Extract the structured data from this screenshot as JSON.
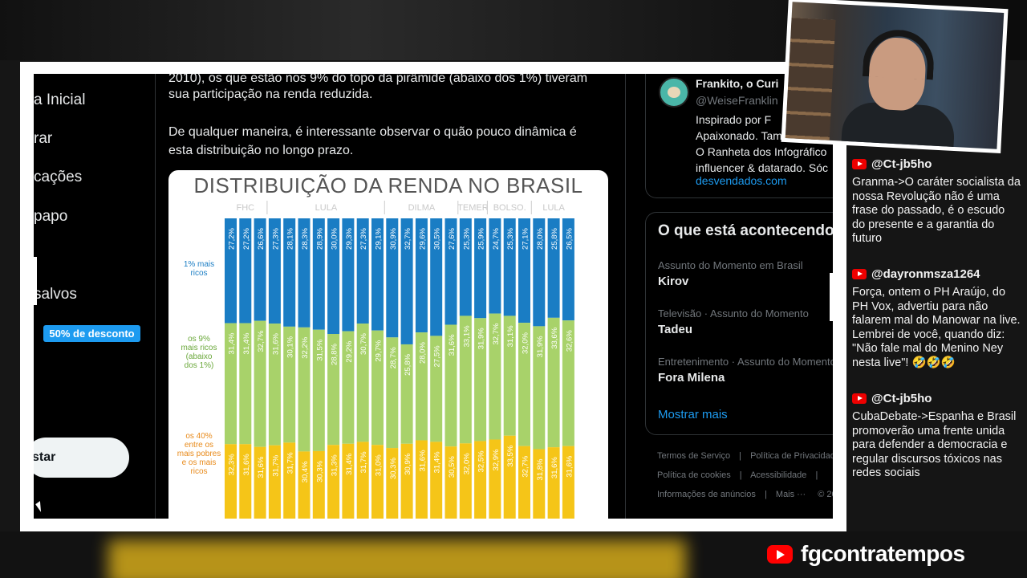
{
  "sidebar": {
    "items": [
      {
        "label": "a Inicial"
      },
      {
        "label": "rar"
      },
      {
        "label": "cações"
      },
      {
        "label": "papo"
      },
      {
        "label": "salvos"
      }
    ],
    "discount_badge": "50% de desconto",
    "post_button": "star"
  },
  "post": {
    "line1": "2010), os que estão nos 9% do topo da pirâmide (abaixo dos 1%) tiveram",
    "line2": "sua participação na renda reduzida.",
    "line3": "De qualquer maneira, é interessante observar o quão pouco dinâmica é",
    "line4": "esta distribuição no longo prazo."
  },
  "profile": {
    "name": "Frankito, o Curi",
    "handle": "@WeiseFranklin",
    "bio": [
      "Inspirado por F",
      "Apaixonado. Também con",
      "O Ranheta dos Infográfico",
      "influencer & datarado. Sóc"
    ],
    "link": "desvendados.com"
  },
  "trends": {
    "title": "O que está acontecendo",
    "items": [
      {
        "meta": "Assunto do Momento em Brasil",
        "name": "Kirov"
      },
      {
        "meta": "Televisão · Assunto do Momento",
        "name": "Tadeu"
      },
      {
        "meta": "Entretenimento · Assunto do Momento",
        "name": "Fora Milena"
      }
    ],
    "show_more": "Mostrar mais"
  },
  "footer": {
    "line1": [
      "Termos de Serviço",
      "|",
      "Política de Privacidade"
    ],
    "line2": [
      "Política de cookies",
      "|",
      "Acessibilidade",
      "|"
    ],
    "line3": [
      "Informações de anúncios",
      "|",
      "Mais ···",
      "© 20"
    ]
  },
  "chat": [
    {
      "user": "@Ct-jb5ho",
      "message": "Granma->O caráter socialista da nossa Revolução não é uma frase do passado, é o escudo do presente e a garantia do futuro"
    },
    {
      "user": "@dayronmsza1264",
      "message": "Força, ontem o PH Araújo, do PH Vox, advertiu para não falarem mal do Manowar na live. Lembrei de você, quando diz: \"Não fale mal do Menino Ney nesta live\"! 🤣🤣🤣"
    },
    {
      "user": "@Ct-jb5ho",
      "message": "CubaDebate->Espanha e Brasil promoverão uma frente unida para defender a democracia e regular discursos tóxicos nas redes sociais"
    }
  ],
  "brand": "fgcontratempos",
  "colors": {
    "top": "#1a7dc4",
    "middle": "#a8d26a",
    "bottom": "#f5c518",
    "accent": "#1d9bf0"
  },
  "chart_data": {
    "type": "bar",
    "title": "DISTRIBUIÇÃO DA RENDA NO BRASIL",
    "periods": [
      "FHC",
      "LULA",
      "DILMA",
      "TEMER",
      "BOLSO.",
      "LULA"
    ],
    "series_labels": {
      "top": "1% mais ricos",
      "middle": [
        "os 9%",
        "mais ricos",
        "(abaixo",
        "dos 1%)"
      ],
      "bottom": [
        "os 40%",
        "entre os",
        "mais pobres",
        "e os mais",
        "ricos"
      ]
    },
    "series": [
      {
        "name": "1% mais ricos",
        "values": [
          27.2,
          27.2,
          26.6,
          27.3,
          28.1,
          28.3,
          28.9,
          30.0,
          29.3,
          27.3,
          29.1,
          30.9,
          32.7,
          29.6,
          30.5,
          27.6,
          25.3,
          25.9,
          24.7,
          25.3,
          27.1,
          28.0,
          25.8,
          26.5
        ]
      },
      {
        "name": "os 9% mais ricos (abaixo dos 1%)",
        "values": [
          31.4,
          31.4,
          32.7,
          31.6,
          30.1,
          32.2,
          31.5,
          28.8,
          29.2,
          30.7,
          29.7,
          28.7,
          25.8,
          28.0,
          27.5,
          31.6,
          33.1,
          31.9,
          32.7,
          31.1,
          32.0,
          31.9,
          33.6,
          32.6
        ]
      },
      {
        "name": "os 40% entre os mais pobres e os mais ricos",
        "values": [
          32.3,
          31.6,
          31.6,
          31.7,
          31.7,
          30.4,
          30.3,
          31.3,
          31.4,
          31.7,
          31.0,
          30.3,
          30.9,
          31.6,
          31.4,
          30.5,
          32.0,
          32.5,
          32.9,
          33.5,
          32.7,
          31.8,
          31.6,
          31.6
        ]
      }
    ]
  }
}
